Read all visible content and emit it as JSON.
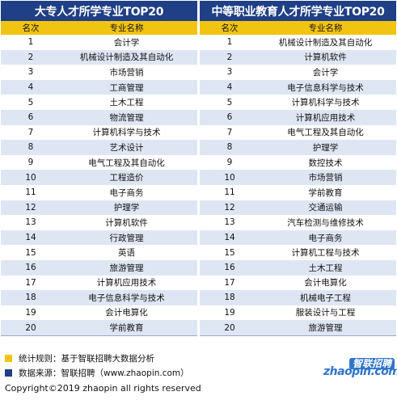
{
  "left_table": {
    "title": "大专人才所学专业TOP20",
    "col_rank": "名次",
    "col_name": "专业名称",
    "rows": [
      {
        "rank": "1",
        "name": "会计学"
      },
      {
        "rank": "2",
        "name": "机械设计制造及其自动化"
      },
      {
        "rank": "3",
        "name": "市场营销"
      },
      {
        "rank": "4",
        "name": "工商管理"
      },
      {
        "rank": "5",
        "name": "土木工程"
      },
      {
        "rank": "6",
        "name": "物流管理"
      },
      {
        "rank": "7",
        "name": "计算机科学与技术"
      },
      {
        "rank": "8",
        "name": "艺术设计"
      },
      {
        "rank": "9",
        "name": "电气工程及其自动化"
      },
      {
        "rank": "10",
        "name": "工程造价"
      },
      {
        "rank": "11",
        "name": "电子商务"
      },
      {
        "rank": "12",
        "name": "护理学"
      },
      {
        "rank": "13",
        "name": "计算机软件"
      },
      {
        "rank": "14",
        "name": "行政管理"
      },
      {
        "rank": "15",
        "name": "英语"
      },
      {
        "rank": "16",
        "name": "旅游管理"
      },
      {
        "rank": "17",
        "name": "计算机应用技术"
      },
      {
        "rank": "18",
        "name": "电子信息科学与技术"
      },
      {
        "rank": "19",
        "name": "会计电算化"
      },
      {
        "rank": "20",
        "name": "学前教育"
      }
    ]
  },
  "right_table": {
    "title": "中等职业教育人才所学专业TOP20",
    "col_rank": "名次",
    "col_name": "专业名称",
    "rows": [
      {
        "rank": "1",
        "name": "机械设计制造及其自动化"
      },
      {
        "rank": "2",
        "name": "计算机软件"
      },
      {
        "rank": "3",
        "name": "会计学"
      },
      {
        "rank": "4",
        "name": "电子信息科学与技术"
      },
      {
        "rank": "5",
        "name": "计算机科学与技术"
      },
      {
        "rank": "6",
        "name": "计算机应用技术"
      },
      {
        "rank": "7",
        "name": "电气工程及其自动化"
      },
      {
        "rank": "8",
        "name": "护理学"
      },
      {
        "rank": "9",
        "name": "数控技术"
      },
      {
        "rank": "10",
        "name": "市场营销"
      },
      {
        "rank": "11",
        "name": "学前教育"
      },
      {
        "rank": "12",
        "name": "交通运输"
      },
      {
        "rank": "13",
        "name": "汽车检测与维修技术"
      },
      {
        "rank": "14",
        "name": "电子商务"
      },
      {
        "rank": "15",
        "name": "计算机工程与技术"
      },
      {
        "rank": "16",
        "name": "土木工程"
      },
      {
        "rank": "17",
        "name": "会计电算化"
      },
      {
        "rank": "18",
        "name": "机械电子工程"
      },
      {
        "rank": "19",
        "name": "服装设计与工程"
      },
      {
        "rank": "20",
        "name": "旅游管理"
      }
    ]
  },
  "footer": {
    "note_rule": "统计规则：基于智联招聘大数据分析",
    "note_source": "数据来源：智联招聘（www.zhaopin.com）",
    "copyright": "Copyright©2019 zhaopin all rights reserved",
    "bullet_colors": [
      "#f2c412",
      "#1f3f86"
    ]
  },
  "logo": {
    "cn": "智联招聘",
    "en": "zhaopin.com"
  },
  "colors": {
    "title_bg": "#1f3f86",
    "header_bg": "#f2c412",
    "stripe_bg": "#dfe6f3",
    "logo_blue": "#2f75c9"
  }
}
